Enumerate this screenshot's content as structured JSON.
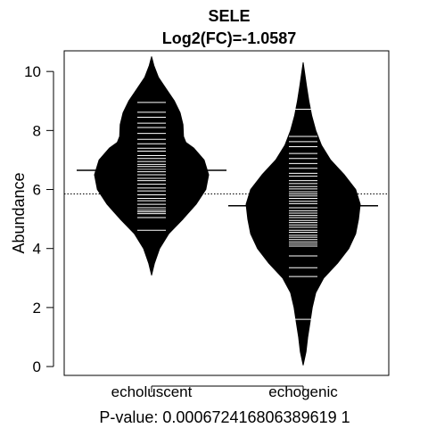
{
  "chart_data": {
    "type": "beanplot",
    "title": "SELE",
    "subtitle": "Log2(FC)=-1.0587",
    "xlabel": "P-value: 0.000672416806389619 1",
    "ylabel": "Abundance",
    "ylim": [
      -0.3,
      10.7
    ],
    "yticks": [
      0,
      2,
      4,
      6,
      8,
      10
    ],
    "overall_mean": 5.85,
    "categories": [
      "echoluscent",
      "echogenic"
    ],
    "groups": [
      {
        "name": "echoluscent",
        "mean": 6.65,
        "density_profile": [
          [
            3.1,
            0.0
          ],
          [
            3.5,
            0.05
          ],
          [
            4.0,
            0.14
          ],
          [
            4.5,
            0.3
          ],
          [
            5.0,
            0.55
          ],
          [
            5.5,
            0.78
          ],
          [
            6.0,
            0.95
          ],
          [
            6.5,
            1.0
          ],
          [
            7.0,
            0.92
          ],
          [
            7.4,
            0.74
          ],
          [
            7.6,
            0.6
          ],
          [
            7.8,
            0.56
          ],
          [
            8.2,
            0.55
          ],
          [
            8.6,
            0.5
          ],
          [
            9.0,
            0.4
          ],
          [
            9.4,
            0.26
          ],
          [
            9.8,
            0.12
          ],
          [
            10.2,
            0.04
          ],
          [
            10.5,
            0.0
          ]
        ],
        "observations": [
          4.62,
          5.05,
          5.18,
          5.24,
          5.3,
          5.38,
          5.5,
          5.62,
          5.7,
          5.82,
          5.95,
          6.05,
          6.18,
          6.3,
          6.38,
          6.5,
          6.6,
          6.68,
          6.78,
          6.85,
          6.95,
          7.05,
          7.15,
          7.3,
          7.4,
          7.55,
          7.7,
          7.9,
          8.1,
          8.25,
          8.45,
          8.62,
          8.95
        ]
      },
      {
        "name": "echogenic",
        "mean": 5.45,
        "density_profile": [
          [
            0.05,
            0.0
          ],
          [
            0.5,
            0.05
          ],
          [
            1.0,
            0.08
          ],
          [
            1.5,
            0.12
          ],
          [
            2.0,
            0.16
          ],
          [
            2.5,
            0.22
          ],
          [
            3.0,
            0.36
          ],
          [
            3.5,
            0.6
          ],
          [
            4.0,
            0.8
          ],
          [
            4.5,
            0.92
          ],
          [
            5.0,
            0.97
          ],
          [
            5.5,
            1.0
          ],
          [
            6.0,
            0.92
          ],
          [
            6.5,
            0.72
          ],
          [
            7.0,
            0.48
          ],
          [
            7.5,
            0.32
          ],
          [
            8.0,
            0.22
          ],
          [
            8.5,
            0.15
          ],
          [
            9.0,
            0.1
          ],
          [
            9.5,
            0.06
          ],
          [
            10.3,
            0.0
          ]
        ],
        "observations": [
          1.6,
          3.05,
          3.35,
          3.75,
          4.08,
          4.15,
          4.22,
          4.3,
          4.38,
          4.45,
          4.55,
          4.62,
          4.72,
          4.8,
          4.88,
          4.95,
          5.05,
          5.12,
          5.2,
          5.28,
          5.38,
          5.45,
          5.52,
          5.6,
          5.7,
          5.78,
          5.85,
          5.92,
          6.02,
          6.1,
          6.2,
          6.3,
          6.45,
          6.55,
          6.72,
          6.88,
          7.05,
          7.22,
          7.45,
          7.62,
          7.8,
          8.72
        ]
      }
    ]
  }
}
